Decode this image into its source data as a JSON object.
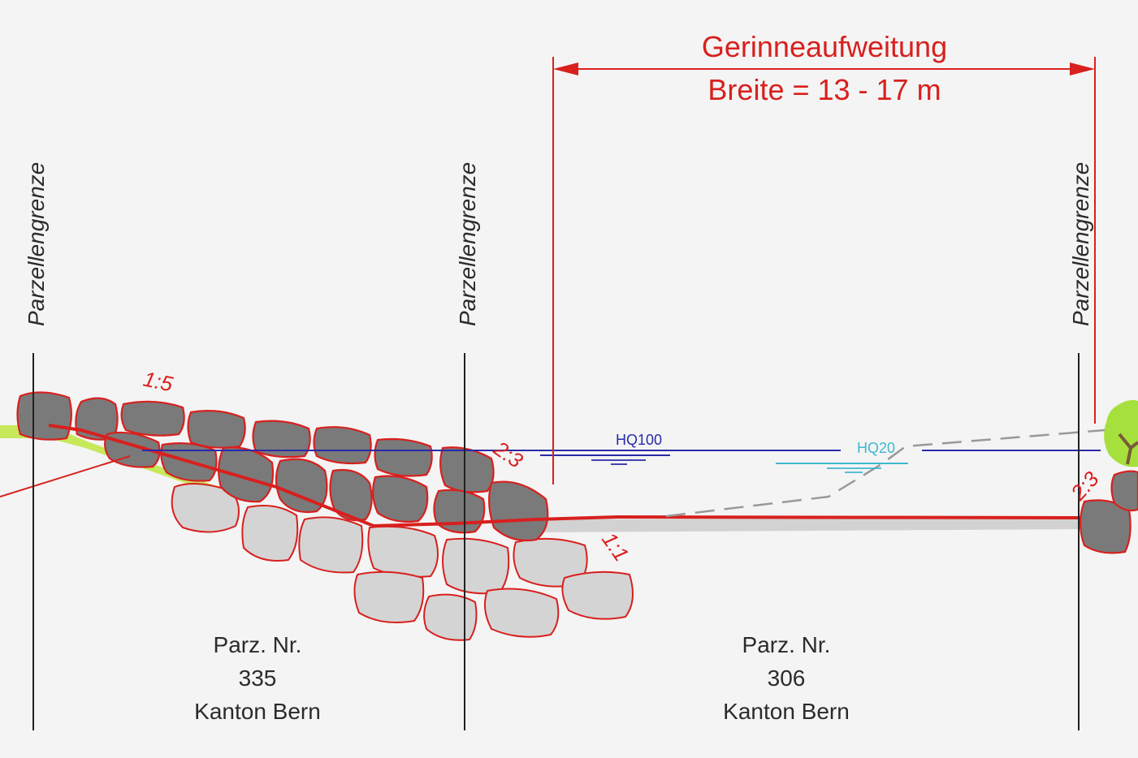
{
  "header": {
    "title": "Gerinneaufweitung",
    "width_label": "Breite = 13 - 17 m"
  },
  "boundaries": [
    {
      "label": "Parzellengrenze"
    },
    {
      "label": "Parzellengrenze"
    },
    {
      "label": "Parzellengrenze"
    }
  ],
  "slopes": {
    "left_bank": "1:5",
    "mid_bank": "2:3",
    "toe": "1:1",
    "right_bank": "2:3"
  },
  "water_levels": {
    "hq100": "HQ100",
    "hq20": "HQ20"
  },
  "parcels": [
    {
      "line1": "Parz. Nr.",
      "line2": "335",
      "line3": "Kanton Bern"
    },
    {
      "line1": "Parz. Nr.",
      "line2": "306",
      "line3": "Kanton Bern"
    }
  ],
  "colors": {
    "dimension_red": "#d8201e",
    "hq100_blue": "#2a2aa8",
    "hq20_cyan": "#3fb8d0",
    "rock_dark": "#7a7a7a",
    "rock_light": "#d4d4d4",
    "grass": "#b8e04a"
  }
}
